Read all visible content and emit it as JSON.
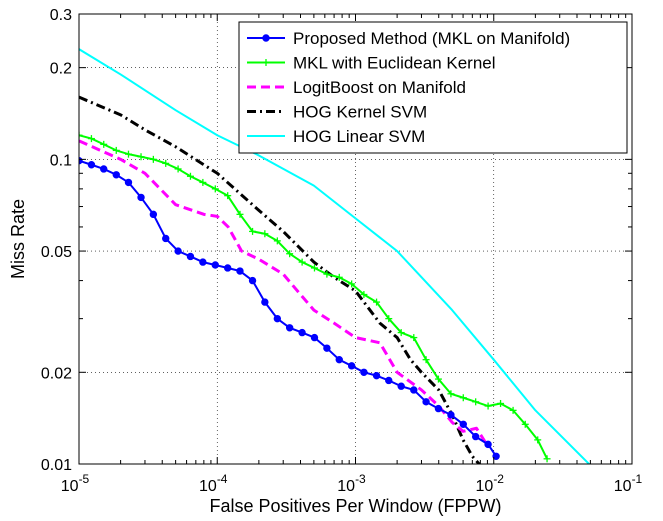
{
  "chart_data": {
    "type": "line",
    "xlabel": "False Positives Per Window (FPPW)",
    "ylabel": "Miss Rate",
    "xscale": "log",
    "yscale": "log",
    "xlim": [
      1e-05,
      0.1
    ],
    "ylim": [
      0.01,
      0.3
    ],
    "xticks": [
      {
        "value": 1e-05,
        "base": "10",
        "exp": "-5"
      },
      {
        "value": 0.0001,
        "base": "10",
        "exp": "-4"
      },
      {
        "value": 0.001,
        "base": "10",
        "exp": "-3"
      },
      {
        "value": 0.01,
        "base": "10",
        "exp": "-2"
      },
      {
        "value": 0.1,
        "base": "10",
        "exp": "-1"
      }
    ],
    "yticks": [
      {
        "value": 0.01,
        "label": "0.01"
      },
      {
        "value": 0.02,
        "label": "0.02"
      },
      {
        "value": 0.05,
        "label": "0.05"
      },
      {
        "value": 0.1,
        "label": "0.1"
      },
      {
        "value": 0.2,
        "label": "0.2"
      },
      {
        "value": 0.3,
        "label": "0.3"
      }
    ],
    "grid": true,
    "legend_position": "top-right",
    "series": [
      {
        "name": "Proposed Method (MKL on Manifold)",
        "color": "#0000ff",
        "line_style": "solid",
        "marker": "dot",
        "x": [
          1e-05,
          1.23e-05,
          1.51e-05,
          1.86e-05,
          2.28e-05,
          2.81e-05,
          3.45e-05,
          4.24e-05,
          5.21e-05,
          6.4e-05,
          7.87e-05,
          9.68e-05,
          0.000119,
          0.000146,
          0.00018,
          0.000221,
          0.000272,
          0.000334,
          0.000411,
          0.000505,
          0.000621,
          0.000763,
          0.000938,
          0.00115,
          0.00142,
          0.00174,
          0.00214,
          0.00264,
          0.00324,
          0.00398,
          0.0049,
          0.00602,
          0.0074,
          0.0091,
          0.0104
        ],
        "y": [
          0.099,
          0.096,
          0.093,
          0.089,
          0.084,
          0.075,
          0.066,
          0.055,
          0.05,
          0.048,
          0.046,
          0.045,
          0.044,
          0.043,
          0.04,
          0.034,
          0.03,
          0.028,
          0.027,
          0.026,
          0.024,
          0.022,
          0.021,
          0.02,
          0.0195,
          0.0188,
          0.018,
          0.0175,
          0.016,
          0.0152,
          0.0145,
          0.0135,
          0.0123,
          0.0116,
          0.0106
        ]
      },
      {
        "name": "MKL with Euclidean Kernel",
        "color": "#00ff00",
        "line_style": "solid",
        "marker": "plus",
        "x": [
          1e-05,
          1.23e-05,
          1.51e-05,
          1.86e-05,
          2.28e-05,
          2.81e-05,
          3.45e-05,
          4.24e-05,
          5.21e-05,
          6.4e-05,
          7.87e-05,
          9.68e-05,
          0.000119,
          0.000146,
          0.00018,
          0.000221,
          0.000272,
          0.000334,
          0.000411,
          0.000505,
          0.000621,
          0.000763,
          0.000938,
          0.00115,
          0.00142,
          0.00174,
          0.00214,
          0.00264,
          0.00324,
          0.00398,
          0.0049,
          0.00602,
          0.0074,
          0.0091,
          0.0112,
          0.0138,
          0.0169,
          0.0208,
          0.0243
        ],
        "y": [
          0.12,
          0.117,
          0.112,
          0.107,
          0.104,
          0.102,
          0.1,
          0.097,
          0.093,
          0.088,
          0.084,
          0.08,
          0.076,
          0.066,
          0.058,
          0.057,
          0.054,
          0.049,
          0.046,
          0.044,
          0.042,
          0.041,
          0.039,
          0.036,
          0.034,
          0.03,
          0.027,
          0.026,
          0.022,
          0.019,
          0.017,
          0.0165,
          0.016,
          0.0155,
          0.0158,
          0.015,
          0.0135,
          0.012,
          0.0104
        ]
      },
      {
        "name": "LogitBoost on Manifold",
        "color": "#ff00ff",
        "line_style": "dashed",
        "marker": "none",
        "x": [
          1e-05,
          2e-05,
          3e-05,
          5e-05,
          8e-05,
          0.0001,
          0.00012,
          0.00015,
          0.0002,
          0.0003,
          0.0004,
          0.0005,
          0.0007,
          0.001,
          0.0015,
          0.002,
          0.003,
          0.004,
          0.005,
          0.006,
          0.0075,
          0.009
        ],
        "y": [
          0.115,
          0.1,
          0.09,
          0.071,
          0.066,
          0.065,
          0.06,
          0.05,
          0.047,
          0.042,
          0.036,
          0.032,
          0.029,
          0.026,
          0.025,
          0.02,
          0.0175,
          0.0155,
          0.0137,
          0.0128,
          0.0131,
          0.0115
        ]
      },
      {
        "name": "HOG Kernel SVM",
        "color": "#000000",
        "line_style": "dashdot",
        "marker": "none",
        "x": [
          1e-05,
          2e-05,
          3e-05,
          5e-05,
          0.0001,
          0.0002,
          0.0003,
          0.0005,
          0.0007,
          0.001,
          0.0015,
          0.002,
          0.0025,
          0.003,
          0.004,
          0.005,
          0.006,
          0.007,
          0.008
        ],
        "y": [
          0.16,
          0.14,
          0.125,
          0.11,
          0.09,
          0.068,
          0.058,
          0.046,
          0.041,
          0.037,
          0.029,
          0.026,
          0.022,
          0.02,
          0.0175,
          0.0145,
          0.012,
          0.0106,
          0.0099
        ]
      },
      {
        "name": "HOG Linear SVM",
        "color": "#00ffff",
        "line_style": "solid",
        "marker": "none",
        "x": [
          1e-05,
          2e-05,
          5e-05,
          0.0001,
          0.0002,
          0.0005,
          0.001,
          0.002,
          0.005,
          0.01,
          0.02,
          0.05
        ],
        "y": [
          0.23,
          0.19,
          0.145,
          0.12,
          0.103,
          0.082,
          0.064,
          0.05,
          0.032,
          0.022,
          0.015,
          0.0099
        ]
      }
    ]
  }
}
